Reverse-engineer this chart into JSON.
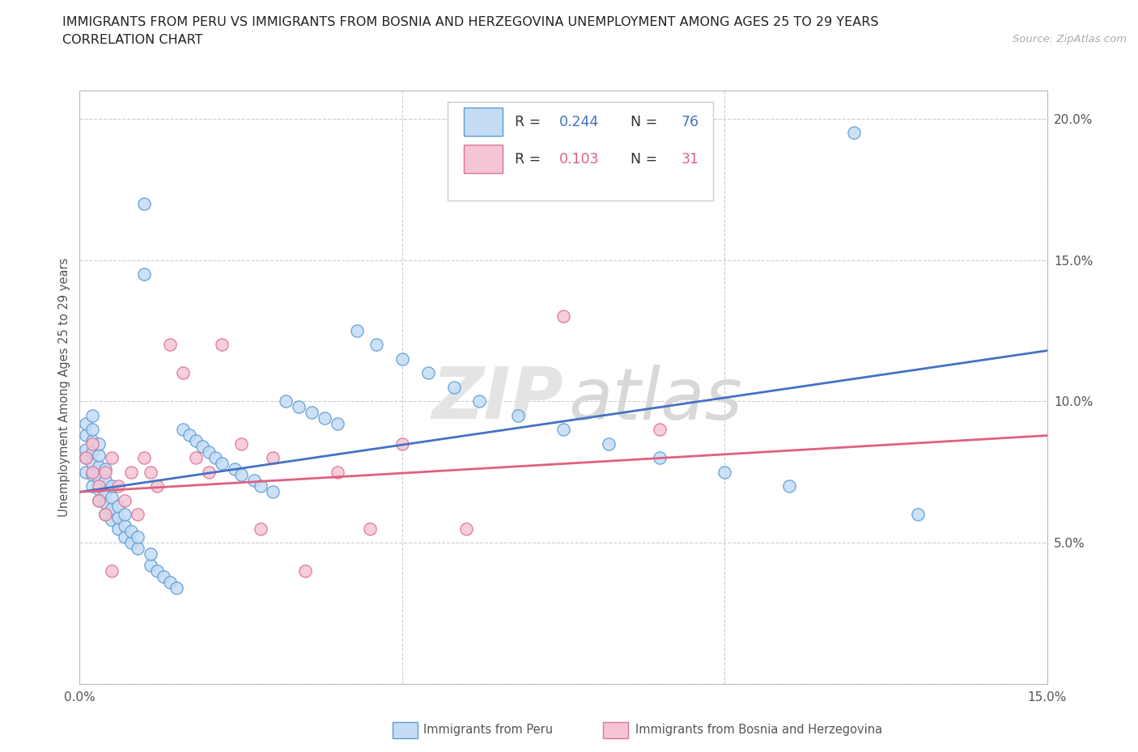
{
  "title_line1": "IMMIGRANTS FROM PERU VS IMMIGRANTS FROM BOSNIA AND HERZEGOVINA UNEMPLOYMENT AMONG AGES 25 TO 29 YEARS",
  "title_line2": "CORRELATION CHART",
  "source": "Source: ZipAtlas.com",
  "ylabel": "Unemployment Among Ages 25 to 29 years",
  "xlim": [
    0.0,
    0.15
  ],
  "ylim": [
    0.0,
    0.21
  ],
  "xtick_positions": [
    0.0,
    0.05,
    0.1,
    0.15
  ],
  "xtick_labels": [
    "0.0%",
    "",
    "",
    "15.0%"
  ],
  "ytick_positions": [
    0.0,
    0.05,
    0.1,
    0.15,
    0.2
  ],
  "ytick_labels": [
    "",
    "5.0%",
    "10.0%",
    "15.0%",
    "20.0%"
  ],
  "R_peru": 0.244,
  "N_peru": 76,
  "R_bosnia": 0.103,
  "N_bosnia": 31,
  "color_peru_fill": "#c5dcf5",
  "color_peru_edge": "#5b9bd5",
  "color_bosnia_fill": "#f5c5d5",
  "color_bosnia_edge": "#e07090",
  "line_color_peru": "#4472c4",
  "line_color_bosnia": "#e06080",
  "background_color": "#ffffff",
  "grid_color": "#cccccc",
  "title_color": "#222222",
  "label_color": "#555555",
  "watermark_text": "ZIPatlas",
  "watermark_color": "#e8e8e8",
  "peru_x": [
    0.001,
    0.001,
    0.001,
    0.001,
    0.001,
    0.002,
    0.002,
    0.002,
    0.002,
    0.002,
    0.002,
    0.002,
    0.003,
    0.003,
    0.003,
    0.003,
    0.003,
    0.003,
    0.004,
    0.004,
    0.004,
    0.004,
    0.004,
    0.005,
    0.005,
    0.005,
    0.005,
    0.006,
    0.006,
    0.006,
    0.007,
    0.007,
    0.007,
    0.008,
    0.008,
    0.009,
    0.009,
    0.01,
    0.01,
    0.011,
    0.011,
    0.012,
    0.013,
    0.014,
    0.015,
    0.016,
    0.017,
    0.018,
    0.019,
    0.02,
    0.021,
    0.022,
    0.024,
    0.025,
    0.027,
    0.028,
    0.03,
    0.032,
    0.034,
    0.036,
    0.038,
    0.04,
    0.043,
    0.046,
    0.05,
    0.054,
    0.058,
    0.062,
    0.068,
    0.075,
    0.082,
    0.09,
    0.1,
    0.11,
    0.12,
    0.13
  ],
  "peru_y": [
    0.075,
    0.08,
    0.083,
    0.088,
    0.092,
    0.07,
    0.074,
    0.078,
    0.082,
    0.086,
    0.09,
    0.095,
    0.065,
    0.069,
    0.073,
    0.077,
    0.081,
    0.085,
    0.06,
    0.064,
    0.068,
    0.072,
    0.076,
    0.058,
    0.062,
    0.066,
    0.07,
    0.055,
    0.059,
    0.063,
    0.052,
    0.056,
    0.06,
    0.05,
    0.054,
    0.048,
    0.052,
    0.145,
    0.17,
    0.042,
    0.046,
    0.04,
    0.038,
    0.036,
    0.034,
    0.09,
    0.088,
    0.086,
    0.084,
    0.082,
    0.08,
    0.078,
    0.076,
    0.074,
    0.072,
    0.07,
    0.068,
    0.1,
    0.098,
    0.096,
    0.094,
    0.092,
    0.125,
    0.12,
    0.115,
    0.11,
    0.105,
    0.1,
    0.095,
    0.09,
    0.085,
    0.08,
    0.075,
    0.07,
    0.195,
    0.06
  ],
  "bosnia_x": [
    0.001,
    0.002,
    0.002,
    0.003,
    0.003,
    0.004,
    0.004,
    0.005,
    0.005,
    0.006,
    0.007,
    0.008,
    0.009,
    0.01,
    0.011,
    0.012,
    0.014,
    0.016,
    0.018,
    0.02,
    0.022,
    0.025,
    0.028,
    0.03,
    0.035,
    0.04,
    0.045,
    0.05,
    0.06,
    0.075,
    0.09
  ],
  "bosnia_y": [
    0.08,
    0.075,
    0.085,
    0.07,
    0.065,
    0.075,
    0.06,
    0.08,
    0.04,
    0.07,
    0.065,
    0.075,
    0.06,
    0.08,
    0.075,
    0.07,
    0.12,
    0.11,
    0.08,
    0.075,
    0.12,
    0.085,
    0.055,
    0.08,
    0.04,
    0.075,
    0.055,
    0.085,
    0.055,
    0.13,
    0.09
  ]
}
